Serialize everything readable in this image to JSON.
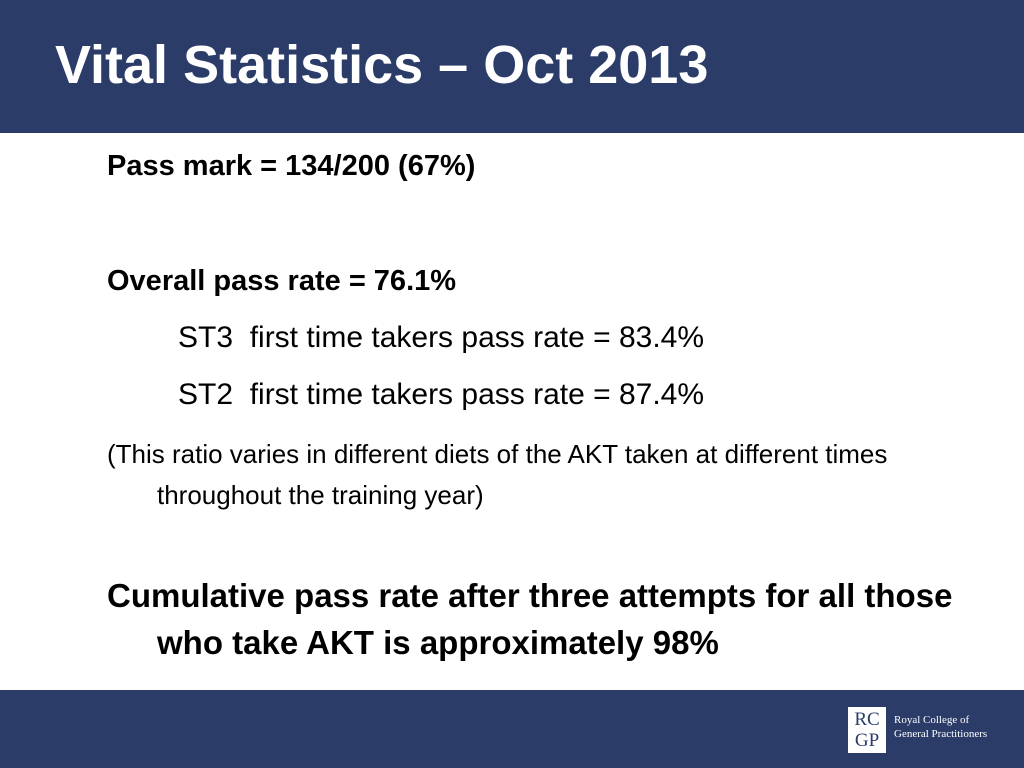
{
  "header": {
    "title": "Vital Statistics – Oct 2013"
  },
  "body": {
    "pass_mark": "Pass mark = 134/200 (67%)",
    "overall": "Overall pass rate = 76.1%",
    "st3": "ST3  first time takers pass rate = 83.4%",
    "st2": "ST2  first time takers pass rate = 87.4%",
    "note": "(This ratio varies in different diets of the AKT taken at different times throughout the training year)",
    "cumulative": "Cumulative pass rate after three attempts for all those who take AKT is approximately 98%"
  },
  "footer": {
    "logo_top": "RC",
    "logo_bottom": "GP",
    "org_line1": "Royal College of",
    "org_line2": "General Practitioners"
  }
}
